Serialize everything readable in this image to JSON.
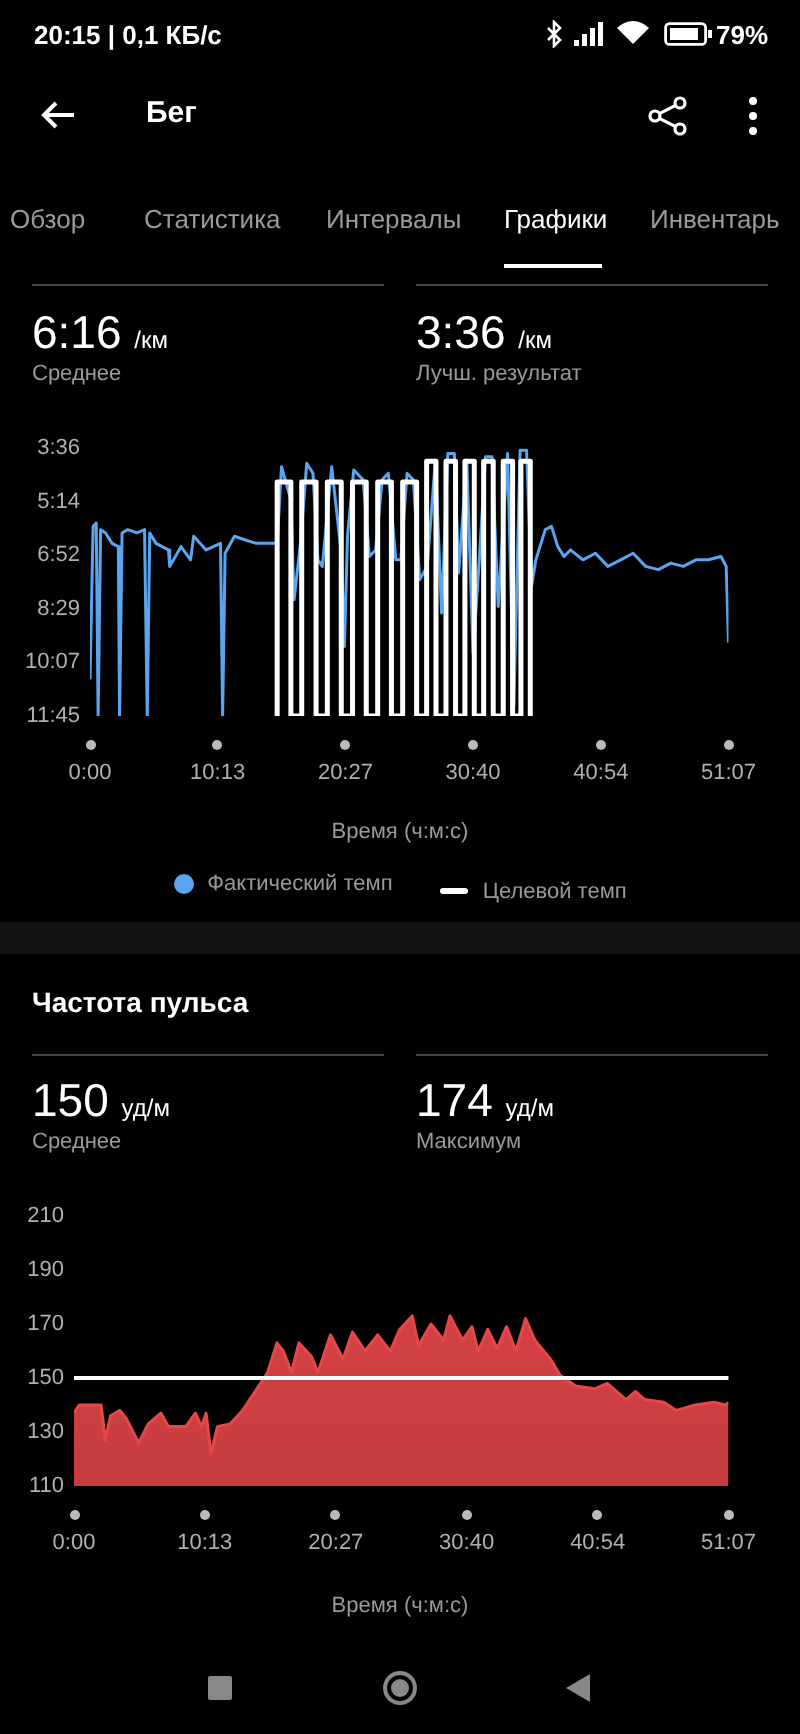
{
  "chart_data": [
    {
      "type": "line",
      "annotations": [
        "20:15 | 0,1 КБ/с",
        "79%",
        "Бег",
        "Обзор",
        "Статистика",
        "Интервалы",
        "Графики",
        "Инвентарь",
        "6:16 /км",
        "Среднее",
        "3:36 /км",
        "Лучш. результат"
      ],
      "xlabel": "Время (ч:м:с)",
      "xlim": [
        0,
        3067
      ],
      "xticks": [
        {
          "value": 0,
          "label": "0:00"
        },
        {
          "value": 613,
          "label": "10:13"
        },
        {
          "value": 1227,
          "label": "20:27"
        },
        {
          "value": 1840,
          "label": "30:40"
        },
        {
          "value": 2454,
          "label": "40:54"
        },
        {
          "value": 3067,
          "label": "51:07"
        }
      ],
      "ylim": [
        705,
        216
      ],
      "yticks": [
        {
          "value": 216,
          "label": "3:36"
        },
        {
          "value": 314,
          "label": "5:14"
        },
        {
          "value": 412,
          "label": "6:52"
        },
        {
          "value": 509,
          "label": "8:29"
        },
        {
          "value": 607,
          "label": "10:07"
        },
        {
          "value": 705,
          "label": "11:45"
        }
      ],
      "grid": false,
      "legend": "bottom",
      "series": [
        {
          "name": "Фактический темп",
          "color": "#5aa5ee",
          "x": [
            0,
            15,
            30,
            39,
            51,
            75,
            106,
            136,
            142,
            154,
            181,
            226,
            262,
            275,
            287,
            317,
            377,
            383,
            437,
            483,
            498,
            558,
            627,
            637,
            649,
            694,
            739,
            799,
            899,
            920,
            965,
            980,
            1011,
            1041,
            1071,
            1095,
            1116,
            1161,
            1207,
            1222,
            1237,
            1267,
            1312,
            1342,
            1372,
            1403,
            1433,
            1469,
            1493,
            1523,
            1553,
            1584,
            1620,
            1659,
            1689,
            1719,
            1750,
            1771,
            1810,
            1840,
            1870,
            1900,
            1931,
            1961,
            2006,
            2036,
            2066,
            2097,
            2121,
            2142,
            2187,
            2217,
            2247,
            2277,
            2308,
            2368,
            2428,
            2488,
            2549,
            2609,
            2669,
            2730,
            2790,
            2850,
            2911,
            2971,
            3031,
            3056,
            3067
          ],
          "values": [
            638,
            359,
            353,
            705,
            365,
            371,
            390,
            396,
            705,
            371,
            365,
            371,
            365,
            705,
            371,
            390,
            402,
            432,
            396,
            420,
            377,
            402,
            390,
            705,
            408,
            377,
            383,
            390,
            390,
            250,
            311,
            493,
            390,
            244,
            262,
            420,
            432,
            250,
            408,
            578,
            377,
            256,
            274,
            414,
            402,
            274,
            262,
            420,
            420,
            262,
            274,
            456,
            432,
            238,
            517,
            226,
            226,
            444,
            238,
            590,
            420,
            232,
            232,
            505,
            226,
            687,
            220,
            220,
            468,
            420,
            365,
            359,
            396,
            414,
            402,
            420,
            408,
            432,
            420,
            408,
            432,
            438,
            426,
            432,
            420,
            420,
            414,
            432,
            571
          ]
        },
        {
          "name": "Целевой темп",
          "color": "#ffffff",
          "x": [
            899,
            899,
            965,
            965,
            1017,
            1017,
            1086,
            1086,
            1140,
            1140,
            1207,
            1207,
            1261,
            1261,
            1327,
            1327,
            1382,
            1382,
            1448,
            1448,
            1502,
            1502,
            1569,
            1569,
            1617,
            1617,
            1662,
            1662,
            1710,
            1710,
            1756,
            1756,
            1801,
            1801,
            1846,
            1846,
            1891,
            1891,
            1937,
            1937,
            1985,
            1985,
            2030,
            2030,
            2070,
            2070,
            2115,
            2115
          ],
          "values": [
            705,
            278,
            278,
            705,
            705,
            278,
            278,
            705,
            705,
            278,
            278,
            705,
            705,
            278,
            278,
            705,
            705,
            278,
            278,
            705,
            705,
            278,
            278,
            705,
            705,
            240,
            240,
            705,
            705,
            240,
            240,
            705,
            705,
            240,
            240,
            705,
            705,
            240,
            240,
            705,
            705,
            240,
            240,
            705,
            705,
            240,
            240,
            705
          ]
        }
      ]
    },
    {
      "type": "area",
      "title": "Частота пульса",
      "annotations": [
        "150 уд/м",
        "Среднее",
        "174 уд/м",
        "Максимум"
      ],
      "xlabel": "Время (ч:м:с)",
      "xlim": [
        0,
        3067
      ],
      "xticks": [
        {
          "value": 0,
          "label": "0:00"
        },
        {
          "value": 613,
          "label": "10:13"
        },
        {
          "value": 1227,
          "label": "20:27"
        },
        {
          "value": 1840,
          "label": "30:40"
        },
        {
          "value": 2454,
          "label": "40:54"
        },
        {
          "value": 3067,
          "label": "51:07"
        }
      ],
      "ylim": [
        110,
        210
      ],
      "yticks": [
        110,
        130,
        150,
        170,
        190,
        210
      ],
      "grid": false,
      "legend": false,
      "ref_lines": [
        {
          "axis": "y",
          "value": 150,
          "color": "#ffffff"
        }
      ],
      "series": [
        {
          "color": "#e8474a",
          "x": [
            0,
            24,
            82,
            127,
            147,
            171,
            215,
            245,
            303,
            348,
            407,
            442,
            524,
            569,
            598,
            619,
            642,
            672,
            731,
            790,
            849,
            907,
            951,
            981,
            1019,
            1054,
            1113,
            1143,
            1202,
            1261,
            1305,
            1364,
            1423,
            1482,
            1526,
            1585,
            1615,
            1673,
            1732,
            1762,
            1821,
            1865,
            1894,
            1939,
            1983,
            2027,
            2071,
            2116,
            2160,
            2233,
            2278,
            2351,
            2440,
            2499,
            2587,
            2631,
            2675,
            2764,
            2823,
            2911,
            3000,
            3053,
            3067
          ],
          "values": [
            137,
            140,
            140,
            140,
            127,
            136,
            138,
            135,
            126,
            133,
            137,
            132,
            132,
            137,
            132,
            137,
            122,
            132,
            133,
            138,
            145,
            152,
            163,
            160,
            152,
            163,
            158,
            152,
            166,
            157,
            167,
            160,
            166,
            160,
            168,
            173,
            162,
            170,
            164,
            173,
            164,
            169,
            160,
            168,
            161,
            169,
            160,
            172,
            164,
            157,
            151,
            147,
            146,
            148,
            142,
            145,
            142,
            141,
            138,
            140,
            141,
            140,
            141
          ]
        }
      ]
    }
  ]
}
